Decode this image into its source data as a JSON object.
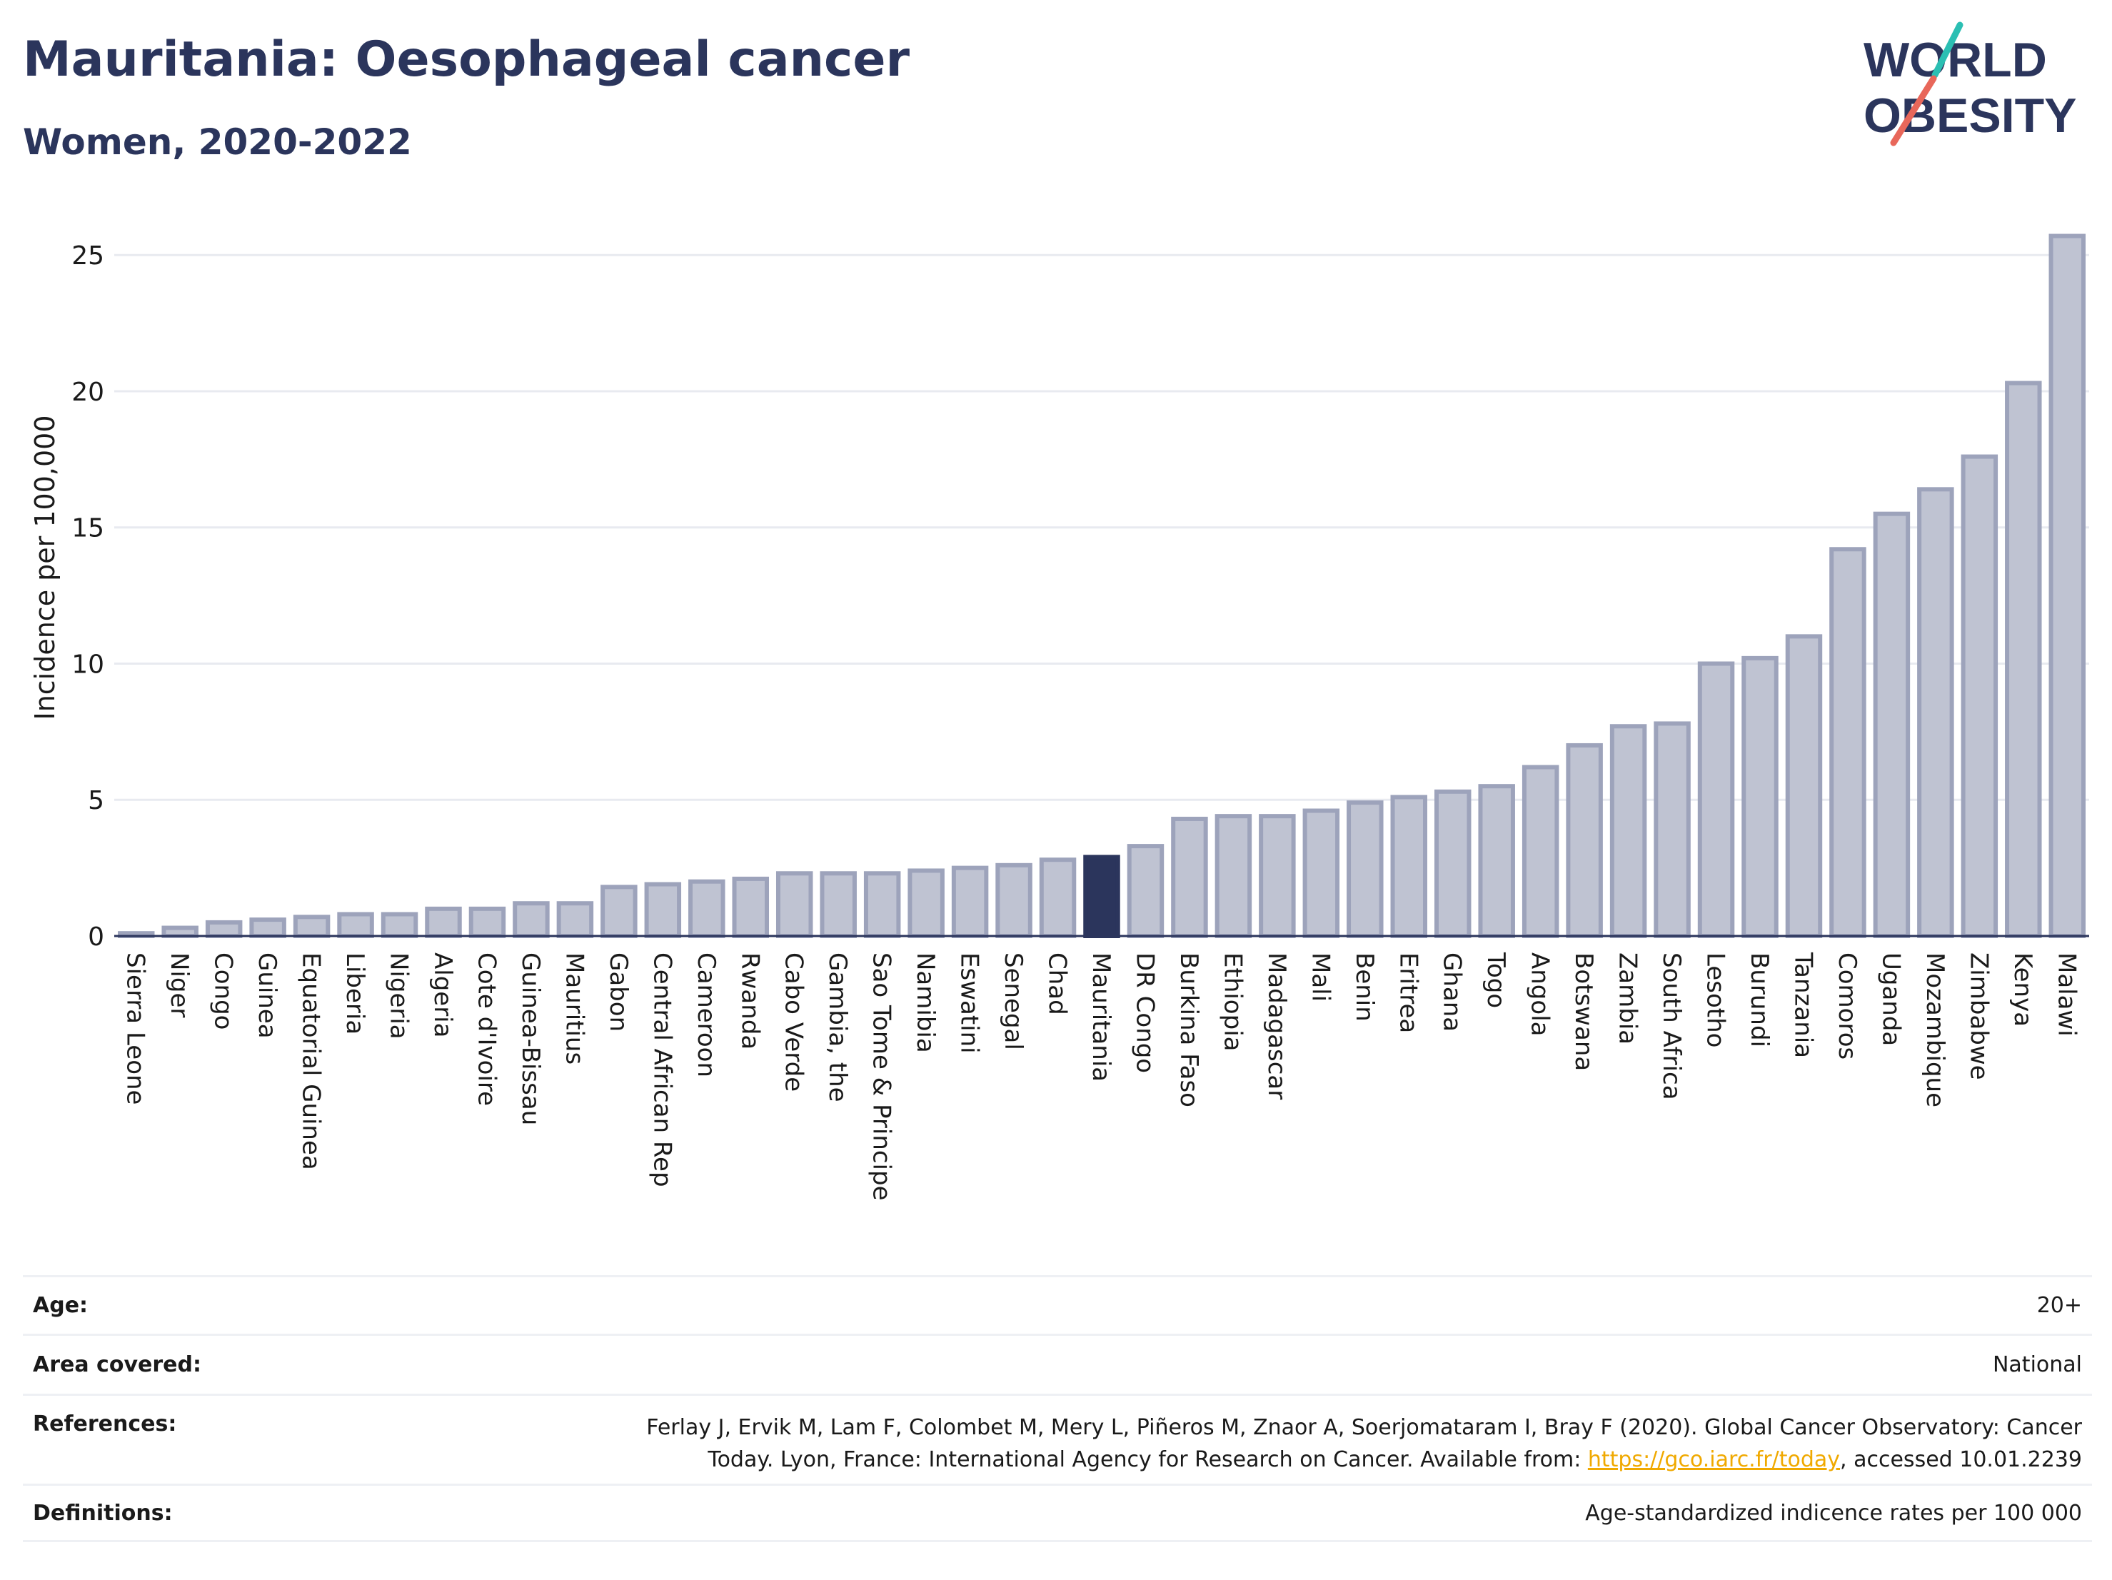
{
  "header": {
    "title": "Mauritania: Oesophageal cancer",
    "subtitle": "Women, 2020-2022"
  },
  "logo": {
    "line1": "WORLD",
    "line2": "OBESITY",
    "accent_teal": "#2bbfb3",
    "accent_red": "#e8675a"
  },
  "colors": {
    "bar": "#bfc3d2",
    "bar_border": "#9da3bb",
    "highlight": "#2b355c",
    "grid": "#e8eaf0"
  },
  "chart_data": {
    "type": "bar",
    "title": "Mauritania: Oesophageal cancer",
    "subtitle": "Women, 2020-2022",
    "ylabel": "Incidence per 100,000",
    "xlabel": "",
    "ylim": [
      0,
      26.5
    ],
    "yticks": [
      0,
      5,
      10,
      15,
      20,
      25
    ],
    "grid": true,
    "highlight": "Mauritania",
    "categories": [
      "Sierra Leone",
      "Niger",
      "Congo",
      "Guinea",
      "Equatorial Guinea",
      "Liberia",
      "Nigeria",
      "Algeria",
      "Cote d'Ivoire",
      "Guinea-Bissau",
      "Mauritius",
      "Gabon",
      "Central African Rep",
      "Cameroon",
      "Rwanda",
      "Cabo Verde",
      "Gambia, the",
      "Sao Tome & Principe",
      "Namibia",
      "Eswatini",
      "Senegal",
      "Chad",
      "Mauritania",
      "DR Congo",
      "Burkina Faso",
      "Ethiopia",
      "Madagascar",
      "Mali",
      "Benin",
      "Eritrea",
      "Ghana",
      "Togo",
      "Angola",
      "Botswana",
      "Zambia",
      "South Africa",
      "Lesotho",
      "Burundi",
      "Tanzania",
      "Comoros",
      "Uganda",
      "Mozambique",
      "Zimbabwe",
      "Kenya",
      "Malawi"
    ],
    "values": [
      0.1,
      0.3,
      0.5,
      0.6,
      0.7,
      0.8,
      0.8,
      1.0,
      1.0,
      1.2,
      1.2,
      1.8,
      1.9,
      2.0,
      2.1,
      2.3,
      2.3,
      2.3,
      2.4,
      2.5,
      2.6,
      2.8,
      2.9,
      3.3,
      4.3,
      4.4,
      4.4,
      4.6,
      4.9,
      5.1,
      5.3,
      5.5,
      6.2,
      7.0,
      7.7,
      7.8,
      10.0,
      10.2,
      11.0,
      14.2,
      15.5,
      16.4,
      17.6,
      20.3,
      25.7
    ]
  },
  "info": [
    {
      "label": "Age:",
      "value": "20+"
    },
    {
      "label": "Area covered:",
      "value": "National"
    },
    {
      "label": "References:",
      "value_line1": "Ferlay J, Ervik M, Lam F, Colombet M, Mery L, Piñeros M, Znaor A, Soerjomataram I, Bray F (2020). Global Cancer Observatory: Cancer",
      "value_line2_pre": "Today. Lyon, France: International Agency for Research on Cancer. Available from: ",
      "link": "https://gco.iarc.fr/today",
      "value_line2_post": ", accessed 10.01.2239"
    },
    {
      "label": "Definitions:",
      "value": "Age-standardized indicence rates per 100 000"
    }
  ]
}
